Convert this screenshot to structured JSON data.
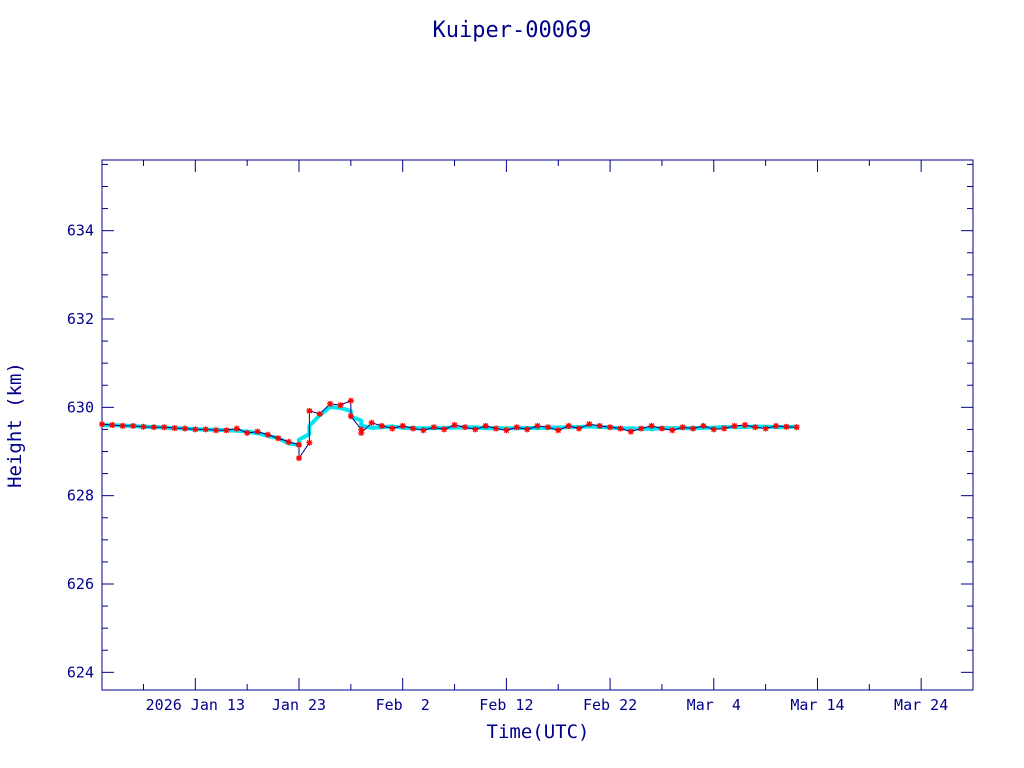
{
  "chart_data": {
    "type": "line",
    "title": "Kuiper-00069",
    "xlabel": "Time(UTC)",
    "ylabel": "Height (km)",
    "xlim": [
      "2026-01-04",
      "2026-03-29"
    ],
    "ylim": [
      623.6,
      635.6
    ],
    "x_ticks": [
      {
        "date": "2026-01-13",
        "label": "2026 Jan 13"
      },
      {
        "date": "2026-01-23",
        "label": "Jan 23"
      },
      {
        "date": "2026-02-02",
        "label": "Feb  2"
      },
      {
        "date": "2026-02-12",
        "label": "Feb 12"
      },
      {
        "date": "2026-02-22",
        "label": "Feb 22"
      },
      {
        "date": "2026-03-04",
        "label": "Mar  4"
      },
      {
        "date": "2026-03-14",
        "label": "Mar 14"
      },
      {
        "date": "2026-03-24",
        "label": "Mar 24"
      }
    ],
    "y_ticks": [
      {
        "value": 624,
        "label": "624"
      },
      {
        "value": 626,
        "label": "626"
      },
      {
        "value": 628,
        "label": "628"
      },
      {
        "value": 630,
        "label": "630"
      },
      {
        "value": 632,
        "label": "632"
      },
      {
        "value": 634,
        "label": "634"
      }
    ],
    "series": [
      {
        "line_color": "#00008b",
        "marker_color": "#ff0000",
        "smooth_color": "#00e5ee",
        "points": [
          [
            "2026-01-04",
            629.62
          ],
          [
            "2026-01-05",
            629.6
          ],
          [
            "2026-01-06",
            629.58
          ],
          [
            "2026-01-07",
            629.58
          ],
          [
            "2026-01-08",
            629.56
          ],
          [
            "2026-01-09",
            629.55
          ],
          [
            "2026-01-10",
            629.55
          ],
          [
            "2026-01-11",
            629.53
          ],
          [
            "2026-01-12",
            629.52
          ],
          [
            "2026-01-13",
            629.5
          ],
          [
            "2026-01-14",
            629.5
          ],
          [
            "2026-01-15",
            629.48
          ],
          [
            "2026-01-16",
            629.48
          ],
          [
            "2026-01-17",
            629.52
          ],
          [
            "2026-01-18",
            629.42
          ],
          [
            "2026-01-19",
            629.45
          ],
          [
            "2026-01-20",
            629.38
          ],
          [
            "2026-01-21",
            629.3
          ],
          [
            "2026-01-22",
            629.22
          ],
          [
            "2026-01-23",
            629.15
          ],
          [
            "2026-01-23",
            628.85
          ],
          [
            "2026-01-24",
            629.2
          ],
          [
            "2026-01-24",
            629.92
          ],
          [
            "2026-01-25",
            629.85
          ],
          [
            "2026-01-26",
            630.08
          ],
          [
            "2026-01-27",
            630.05
          ],
          [
            "2026-01-28",
            630.15
          ],
          [
            "2026-01-28",
            629.8
          ],
          [
            "2026-01-29",
            629.5
          ],
          [
            "2026-01-29",
            629.42
          ],
          [
            "2026-01-30",
            629.65
          ],
          [
            "2026-01-31",
            629.58
          ],
          [
            "2026-02-01",
            629.52
          ],
          [
            "2026-02-02",
            629.58
          ],
          [
            "2026-02-03",
            629.52
          ],
          [
            "2026-02-04",
            629.48
          ],
          [
            "2026-02-05",
            629.55
          ],
          [
            "2026-02-06",
            629.5
          ],
          [
            "2026-02-07",
            629.6
          ],
          [
            "2026-02-08",
            629.55
          ],
          [
            "2026-02-09",
            629.5
          ],
          [
            "2026-02-10",
            629.58
          ],
          [
            "2026-02-11",
            629.52
          ],
          [
            "2026-02-12",
            629.48
          ],
          [
            "2026-02-13",
            629.55
          ],
          [
            "2026-02-14",
            629.5
          ],
          [
            "2026-02-15",
            629.58
          ],
          [
            "2026-02-16",
            629.55
          ],
          [
            "2026-02-17",
            629.48
          ],
          [
            "2026-02-18",
            629.58
          ],
          [
            "2026-02-19",
            629.52
          ],
          [
            "2026-02-20",
            629.62
          ],
          [
            "2026-02-21",
            629.58
          ],
          [
            "2026-02-22",
            629.55
          ],
          [
            "2026-02-23",
            629.52
          ],
          [
            "2026-02-24",
            629.45
          ],
          [
            "2026-02-25",
            629.52
          ],
          [
            "2026-02-26",
            629.58
          ],
          [
            "2026-02-27",
            629.52
          ],
          [
            "2026-02-28",
            629.48
          ],
          [
            "2026-03-01",
            629.55
          ],
          [
            "2026-03-02",
            629.52
          ],
          [
            "2026-03-03",
            629.58
          ],
          [
            "2026-03-04",
            629.5
          ],
          [
            "2026-03-05",
            629.52
          ],
          [
            "2026-03-06",
            629.58
          ],
          [
            "2026-03-07",
            629.6
          ],
          [
            "2026-03-08",
            629.55
          ],
          [
            "2026-03-09",
            629.52
          ],
          [
            "2026-03-10",
            629.58
          ],
          [
            "2026-03-11",
            629.56
          ],
          [
            "2026-03-12",
            629.55
          ]
        ]
      }
    ],
    "grid": false
  }
}
